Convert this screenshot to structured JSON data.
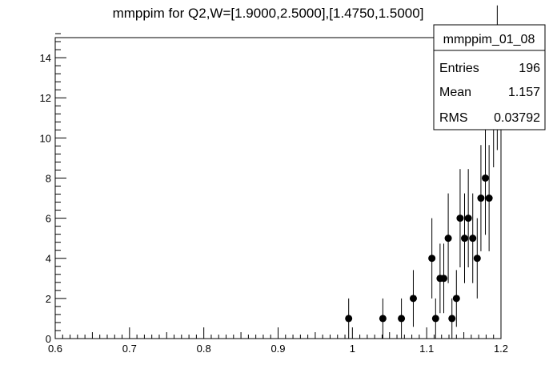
{
  "chart_data": {
    "type": "scatter",
    "title": "mmppim for Q2,W=[1.9000,2.5000],[1.4750,1.5000]",
    "xlabel": "",
    "ylabel": "",
    "xlim": [
      0.6,
      1.2
    ],
    "ylim": [
      0,
      15
    ],
    "x_ticks": [
      "0.6",
      "0.7",
      "0.8",
      "0.9",
      "1",
      "1.1",
      "1.2"
    ],
    "y_ticks": [
      "0",
      "2",
      "4",
      "6",
      "8",
      "10",
      "12",
      "14"
    ],
    "grid": false,
    "points": [
      {
        "x": 0.995,
        "y": 1
      },
      {
        "x": 1.041,
        "y": 1
      },
      {
        "x": 1.066,
        "y": 1
      },
      {
        "x": 1.082,
        "y": 2
      },
      {
        "x": 1.107,
        "y": 4
      },
      {
        "x": 1.112,
        "y": 1
      },
      {
        "x": 1.118,
        "y": 3
      },
      {
        "x": 1.123,
        "y": 3
      },
      {
        "x": 1.129,
        "y": 5
      },
      {
        "x": 1.134,
        "y": 1
      },
      {
        "x": 1.14,
        "y": 2
      },
      {
        "x": 1.145,
        "y": 6
      },
      {
        "x": 1.151,
        "y": 5
      },
      {
        "x": 1.156,
        "y": 6
      },
      {
        "x": 1.162,
        "y": 5
      },
      {
        "x": 1.168,
        "y": 4
      },
      {
        "x": 1.173,
        "y": 7
      },
      {
        "x": 1.179,
        "y": 8
      },
      {
        "x": 1.184,
        "y": 7
      },
      {
        "x": 1.19,
        "y": 12
      },
      {
        "x": 1.195,
        "y": 13
      }
    ],
    "stats": {
      "name": "mmppim_01_08",
      "entries_label": "Entries",
      "entries": "196",
      "mean_label": "Mean",
      "mean": "1.157",
      "rms_label": "RMS",
      "rms": "0.03792"
    }
  }
}
